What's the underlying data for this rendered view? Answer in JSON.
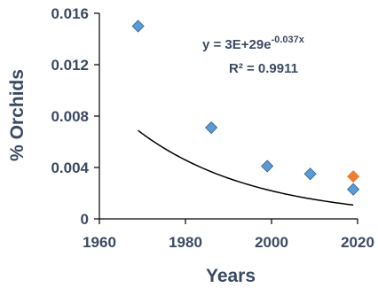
{
  "chart_data": {
    "type": "scatter",
    "xlabel": "Years",
    "ylabel": "% Orchids",
    "xlim": [
      1960,
      2020
    ],
    "ylim": [
      0,
      0.016
    ],
    "x_ticks": [
      "1960",
      "1980",
      "2000",
      "2020"
    ],
    "y_ticks": [
      "0",
      "0.004",
      "0.008",
      "0.012",
      "0.016"
    ],
    "grid": false,
    "legend": "none",
    "series": [
      {
        "marker": "diamond",
        "color": "#5b9bd5",
        "points": [
          {
            "x": 1969,
            "y": 0.015
          },
          {
            "x": 1986,
            "y": 0.0071
          },
          {
            "x": 1999,
            "y": 0.0041
          },
          {
            "x": 2009,
            "y": 0.0035
          },
          {
            "x": 2019,
            "y": 0.0023
          }
        ]
      },
      {
        "marker": "diamond",
        "color": "#ed7d31",
        "points": [
          {
            "x": 2019,
            "y": 0.0033
          }
        ]
      }
    ],
    "trendline": {
      "type": "exponential",
      "color": "#000000",
      "x_range": [
        1969,
        2019
      ],
      "a": 3e+29,
      "b": -0.037,
      "equation_prefix": "y = 3E+29e",
      "equation_exponent": "-0.037x",
      "r2_label": "R² = 0.9911"
    }
  }
}
